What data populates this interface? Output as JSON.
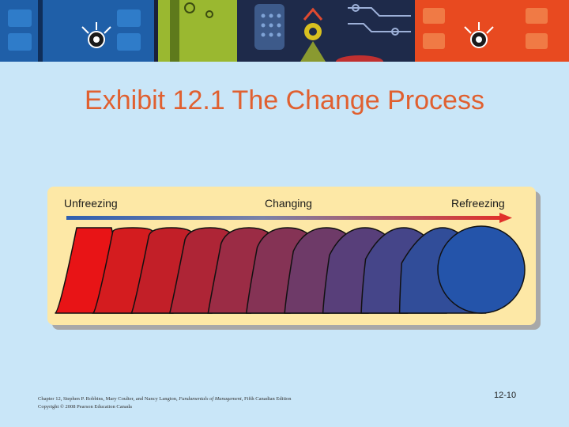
{
  "slide": {
    "title": "Exhibit 12.1 The Change Process"
  },
  "diagram": {
    "stages": [
      "Unfreezing",
      "Changing",
      "Refreezing"
    ],
    "shape_colors": [
      "#e81416",
      "#d41c1f",
      "#c21f28",
      "#ae2536",
      "#9b2c45",
      "#853355",
      "#6e3a68",
      "#583f7a",
      "#454589",
      "#314d99",
      "#2454aa"
    ]
  },
  "footer": {
    "citation_pre": "Chapter 12, Stephen P. Robbins, Mary Coulter, and Nancy Langton, ",
    "citation_title": "Fundamentals of Management",
    "citation_post": ", Fifth Canadian Edition",
    "copyright": "Copyright © 2008 Pearson Education Canada",
    "page_number": "12-10"
  }
}
